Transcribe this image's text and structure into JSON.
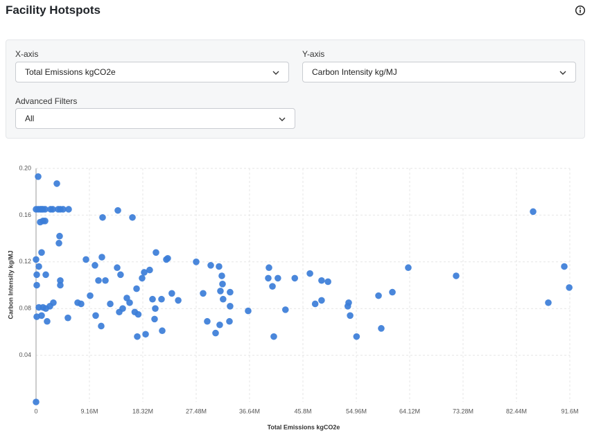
{
  "header": {
    "title": "Facility Hotspots"
  },
  "filters": {
    "x_axis": {
      "label": "X-axis",
      "value": "Total Emissions kgCO2e"
    },
    "y_axis": {
      "label": "Y-axis",
      "value": "Carbon Intensity kg/MJ"
    },
    "advanced": {
      "label": "Advanced Filters",
      "value": "All"
    }
  },
  "chart_data": {
    "type": "scatter",
    "x_label": "Total Emissions kgCO2e",
    "y_label": "Carbon Intensity kg/MJ",
    "color": "#3b7dd8",
    "grid": true,
    "xlim": [
      0,
      91600000
    ],
    "ylim": [
      0,
      0.2
    ],
    "xticks": [
      0,
      {
        "value": 9160000,
        "label": "9.16M"
      },
      {
        "value": 18320000,
        "label": "18.32M"
      },
      {
        "value": 27480000,
        "label": "27.48M"
      },
      {
        "value": 36640000,
        "label": "36.64M"
      },
      {
        "value": 45800000,
        "label": "45.8M"
      },
      {
        "value": 54960000,
        "label": "54.96M"
      },
      {
        "value": 64120000,
        "label": "64.12M"
      },
      {
        "value": 73280000,
        "label": "73.28M"
      },
      {
        "value": 82440000,
        "label": "82.44M"
      },
      {
        "value": 91600000,
        "label": "91.6M"
      }
    ],
    "yticks": [
      0.04,
      0.08,
      0.12,
      0.16,
      {
        "value": 0.2,
        "label": "0.20"
      }
    ],
    "x": [
      0,
      360000,
      3570000,
      0,
      360000,
      710000,
      950000,
      1190000,
      1550000,
      2500000,
      2860000,
      3800000,
      4160000,
      4640000,
      5590000,
      710000,
      1190000,
      1550000,
      4040000,
      3930000,
      950000,
      0,
      480000,
      120000,
      1670000,
      120000,
      4160000,
      4160000,
      2970000,
      2380000,
      480000,
      1190000,
      1670000,
      120000,
      950000,
      1900000,
      5470000,
      11420000,
      14040000,
      16540000,
      8570000,
      10110000,
      11300000,
      10710000,
      11900000,
      13920000,
      14500000,
      7140000,
      7730000,
      9280000,
      12730000,
      10230000,
      11180000,
      14280000,
      14870000,
      15580000,
      16060000,
      17250000,
      18200000,
      18560000,
      19500000,
      16940000,
      17540000,
      17370000,
      18800000,
      20580000,
      22360000,
      22600000,
      19990000,
      21530000,
      23300000,
      24400000,
      20460000,
      20340000,
      21650000,
      27480000,
      29980000,
      31400000,
      31880000,
      32000000,
      28670000,
      31640000,
      33300000,
      32100000,
      33300000,
      29380000,
      33190000,
      31520000,
      30810000,
      36400000,
      39970000,
      39850000,
      41500000,
      40570000,
      44400000,
      42800000,
      40800000,
      47000000,
      47900000,
      49000000,
      50100000,
      49000000,
      53650000,
      53500000,
      53900000,
      55000000,
      58770000,
      61150000,
      59240000,
      63880000,
      72090000,
      85300000,
      87910000,
      90650000,
      91500000
    ],
    "values": [
      0,
      0.193,
      0.187,
      0.165,
      0.165,
      0.165,
      0.165,
      0.165,
      0.165,
      0.165,
      0.165,
      0.165,
      0.165,
      0.165,
      0.165,
      0.154,
      0.155,
      0.155,
      0.142,
      0.136,
      0.128,
      0.122,
      0.116,
      0.109,
      0.109,
      0.1,
      0.104,
      0.1,
      0.085,
      0.082,
      0.081,
      0.081,
      0.08,
      0.073,
      0.074,
      0.069,
      0.072,
      0.158,
      0.164,
      0.158,
      0.122,
      0.117,
      0.124,
      0.104,
      0.104,
      0.115,
      0.109,
      0.085,
      0.084,
      0.091,
      0.084,
      0.074,
      0.065,
      0.077,
      0.08,
      0.089,
      0.085,
      0.097,
      0.106,
      0.111,
      0.113,
      0.077,
      0.075,
      0.056,
      0.058,
      0.128,
      0.122,
      0.123,
      0.088,
      0.088,
      0.093,
      0.087,
      0.08,
      0.071,
      0.061,
      0.12,
      0.117,
      0.116,
      0.108,
      0.101,
      0.093,
      0.095,
      0.094,
      0.088,
      0.082,
      0.069,
      0.069,
      0.066,
      0.059,
      0.078,
      0.115,
      0.106,
      0.106,
      0.099,
      0.106,
      0.079,
      0.056,
      0.11,
      0.084,
      0.104,
      0.103,
      0.087,
      0.085,
      0.082,
      0.074,
      0.056,
      0.091,
      0.094,
      0.063,
      0.115,
      0.108,
      0.163,
      0.085,
      0.116,
      0.098
    ]
  }
}
